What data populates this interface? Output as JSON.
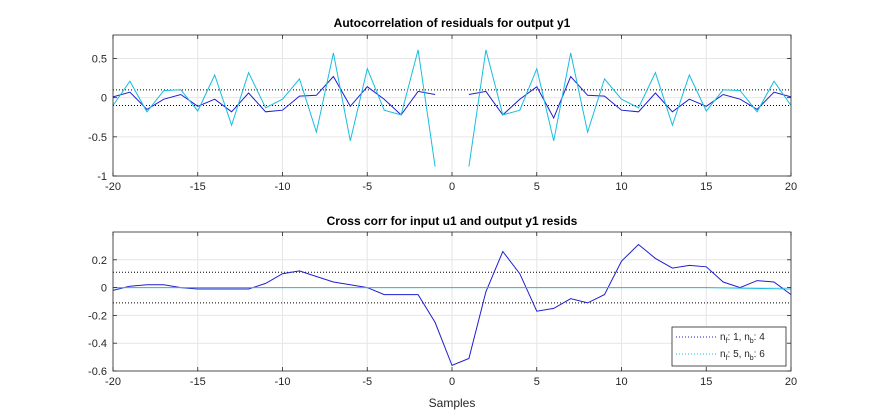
{
  "chart_data": [
    {
      "type": "line",
      "title": "Autocorrelation of residuals for output y1",
      "xlabel": "",
      "ylabel": "",
      "xlim": [
        -20,
        20
      ],
      "ylim": [
        -1,
        0.8
      ],
      "xticks": [
        -20,
        -15,
        -10,
        -5,
        0,
        5,
        10,
        15,
        20
      ],
      "yticks": [
        -1,
        -0.5,
        0,
        0.5
      ],
      "ytick_labels": [
        "-1",
        "-0.5",
        "0",
        "0.5"
      ],
      "grid": true,
      "confidence_band": [
        -0.1,
        0.1
      ],
      "series": [
        {
          "color": "#1f1fd0",
          "x": [
            -20,
            -19,
            -18,
            -17,
            -16,
            -15,
            -14,
            -13,
            -12,
            -11,
            -10,
            -9,
            -8,
            -7,
            -6,
            -5,
            -4,
            -3,
            -2,
            -1,
            1,
            2,
            3,
            4,
            5,
            6,
            7,
            8,
            9,
            10,
            11,
            12,
            13,
            14,
            15,
            16,
            17,
            18,
            19,
            20
          ],
          "values": [
            0.01,
            0.07,
            -0.15,
            -0.02,
            0.04,
            -0.11,
            -0.02,
            -0.18,
            0.06,
            -0.18,
            -0.16,
            0.02,
            0.03,
            0.27,
            -0.11,
            0.14,
            -0.02,
            -0.22,
            0.08,
            0.04,
            0.04,
            0.08,
            -0.22,
            -0.02,
            0.14,
            -0.26,
            0.27,
            0.03,
            0.02,
            -0.16,
            -0.18,
            0.06,
            -0.18,
            -0.02,
            -0.11,
            0.04,
            -0.02,
            -0.15,
            0.07,
            0.01
          ]
        },
        {
          "color": "#19bde0",
          "x": [
            -20,
            -19,
            -18,
            -17,
            -16,
            -15,
            -14,
            -13,
            -12,
            -11,
            -10,
            -9,
            -8,
            -7,
            -6,
            -5,
            -4,
            -3,
            -2,
            -1,
            1,
            2,
            3,
            4,
            5,
            6,
            7,
            8,
            9,
            10,
            11,
            12,
            13,
            14,
            15,
            16,
            17,
            18,
            19,
            20
          ],
          "values": [
            -0.1,
            0.21,
            -0.18,
            0.09,
            0.1,
            -0.17,
            0.29,
            -0.35,
            0.32,
            -0.13,
            -0.02,
            0.24,
            -0.44,
            0.57,
            -0.55,
            0.37,
            -0.16,
            -0.22,
            0.61,
            -0.88,
            -0.88,
            0.61,
            -0.22,
            -0.16,
            0.37,
            -0.55,
            0.57,
            -0.44,
            0.24,
            -0.02,
            -0.13,
            0.32,
            -0.35,
            0.29,
            -0.17,
            0.1,
            0.09,
            -0.18,
            0.21,
            -0.1
          ]
        }
      ]
    },
    {
      "type": "line",
      "title": "Cross corr for input u1 and output y1 resids",
      "xlabel": "Samples",
      "ylabel": "",
      "xlim": [
        -20,
        20
      ],
      "ylim": [
        -0.6,
        0.4
      ],
      "xticks": [
        -20,
        -15,
        -10,
        -5,
        0,
        5,
        10,
        15,
        20
      ],
      "yticks": [
        -0.6,
        -0.4,
        -0.2,
        0,
        0.2
      ],
      "ytick_labels": [
        "-0.6",
        "-0.4",
        "-0.2",
        "0",
        "0.2"
      ],
      "grid": true,
      "confidence_band": [
        -0.11,
        0.11
      ],
      "legend": {
        "position": "bottom-right",
        "entries": [
          {
            "pre": "n",
            "sub1": "f",
            "mid": ": 1, n",
            "sub2": "b",
            "post": ": 4"
          },
          {
            "pre": "n",
            "sub1": "f",
            "mid": ": 5, n",
            "sub2": "b",
            "post": ": 6"
          }
        ]
      },
      "series": [
        {
          "color": "#1f1fd0",
          "x": [
            -20,
            -19,
            -18,
            -17,
            -16,
            -15,
            -14,
            -13,
            -12,
            -11,
            -10,
            -9,
            -8,
            -7,
            -6,
            -5,
            -4,
            -3,
            -2,
            -1,
            0,
            1,
            2,
            3,
            4,
            5,
            6,
            7,
            8,
            9,
            10,
            11,
            12,
            13,
            14,
            15,
            16,
            17,
            18,
            19,
            20
          ],
          "values": [
            -0.02,
            0.01,
            0.02,
            0.02,
            0.0,
            -0.01,
            -0.01,
            -0.01,
            -0.01,
            0.03,
            0.1,
            0.12,
            0.08,
            0.04,
            0.02,
            0.0,
            -0.05,
            -0.05,
            -0.05,
            -0.25,
            -0.56,
            -0.51,
            -0.03,
            0.26,
            0.1,
            -0.17,
            -0.15,
            -0.08,
            -0.11,
            -0.05,
            0.19,
            0.31,
            0.21,
            0.14,
            0.16,
            0.15,
            0.04,
            0.0,
            0.05,
            0.04,
            -0.05
          ]
        },
        {
          "color": "#19bde0",
          "x": [
            -20,
            -15,
            -10,
            -5,
            0,
            5,
            10,
            15,
            20
          ],
          "values": [
            0.0,
            0.0,
            0.0,
            0.0,
            0.0,
            0.0,
            0.0,
            0.0,
            -0.01
          ]
        }
      ]
    }
  ]
}
